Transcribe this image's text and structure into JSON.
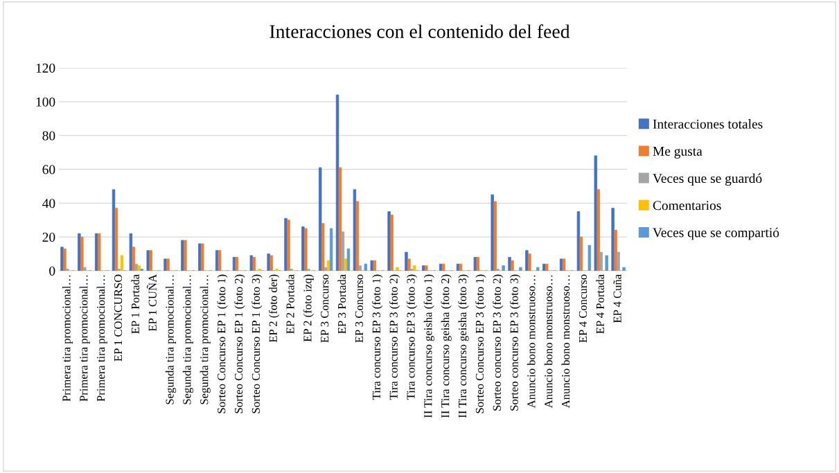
{
  "chart_data": {
    "type": "bar",
    "title": "Interacciones con el contenido del feed",
    "categories": [
      "Primera tira promocional…",
      "Primera tira promocional…",
      "Primera tira promocional…",
      "EP 1 CONCURSO",
      "EP 1 Portada",
      "EP 1 CUÑA",
      "Segunda tira promocional…",
      "Segunda tira promocional…",
      "Segunda tira promocional…",
      "Sorteo Concurso EP 1 (foto 1)",
      "Sorteo Concurso EP 1 (foto 2)",
      "Sorteo Concurso EP 1 (foto 3)",
      "EP 2 (foto der)",
      "EP 2 Portada",
      "EP 2 (foto izq)",
      "EP 3 Concurso",
      "EP 3 Portada",
      "EP 3 Concurso",
      "Tira concurso EP 3 (foto 1)",
      "Tira concurso EP 3 (foto 2)",
      "Tira concurso EP 3 (foto 3)",
      "II Tira concurso geisha (foto 1)",
      "II Tira concurso geisha (foto 2)",
      "II Tira concurso geisha (foto 3)",
      "Sorteo Concurso EP 3 (foto 1)",
      "Sorteo concurso EP 3 (foto 2)",
      "Sorteo concurso EP 3 (foto 3)",
      "Anuncio bono monstruoso…",
      "Anuncio bono monstruoso…",
      "Anuncio bono monstruoso…",
      "EP 4 Concurso",
      "EP 4 Portada",
      "EP 4 Cuña"
    ],
    "series": [
      {
        "name": "Interacciones totales",
        "color": "#4472c4",
        "values": [
          14,
          22,
          22,
          48,
          22,
          12,
          7,
          18,
          16,
          12,
          8,
          9,
          10,
          31,
          26,
          61,
          104,
          48,
          6,
          35,
          11,
          3,
          4,
          4,
          8,
          45,
          8,
          12,
          4,
          7,
          35,
          68,
          37
        ]
      },
      {
        "name": "Me gusta",
        "color": "#ed7d31",
        "values": [
          13,
          20,
          22,
          37,
          14,
          12,
          7,
          18,
          16,
          12,
          8,
          8,
          9,
          30,
          25,
          28,
          61,
          41,
          6,
          33,
          7,
          3,
          4,
          4,
          8,
          41,
          6,
          10,
          4,
          7,
          20,
          48,
          24
        ]
      },
      {
        "name": "Veces que se guardó",
        "color": "#a5a5a5",
        "values": [
          1,
          2,
          0,
          1,
          4,
          0,
          0,
          0,
          0,
          0,
          0,
          0,
          0,
          1,
          1,
          2,
          23,
          3,
          0,
          0,
          1,
          0,
          0,
          0,
          0,
          1,
          0,
          0,
          0,
          0,
          0,
          11,
          11
        ]
      },
      {
        "name": "Comentarios",
        "color": "#ffc000",
        "values": [
          0,
          0,
          0,
          9,
          3,
          0,
          0,
          0,
          0,
          0,
          0,
          1,
          1,
          0,
          0,
          6,
          7,
          0,
          0,
          2,
          3,
          0,
          0,
          0,
          0,
          0,
          0,
          0,
          0,
          0,
          0,
          0,
          0
        ]
      },
      {
        "name": "Veces que se compartió",
        "color": "#5b9bd5",
        "values": [
          0,
          0,
          0,
          0,
          1,
          0,
          0,
          0,
          0,
          0,
          0,
          0,
          0,
          0,
          0,
          25,
          13,
          4,
          0,
          0,
          0,
          0,
          0,
          0,
          0,
          3,
          2,
          2,
          0,
          0,
          15,
          9,
          2
        ]
      }
    ],
    "ylim": [
      0,
      120
    ],
    "yticks": [
      0,
      20,
      40,
      60,
      80,
      100,
      120
    ],
    "grid": "y",
    "legend": "right"
  }
}
